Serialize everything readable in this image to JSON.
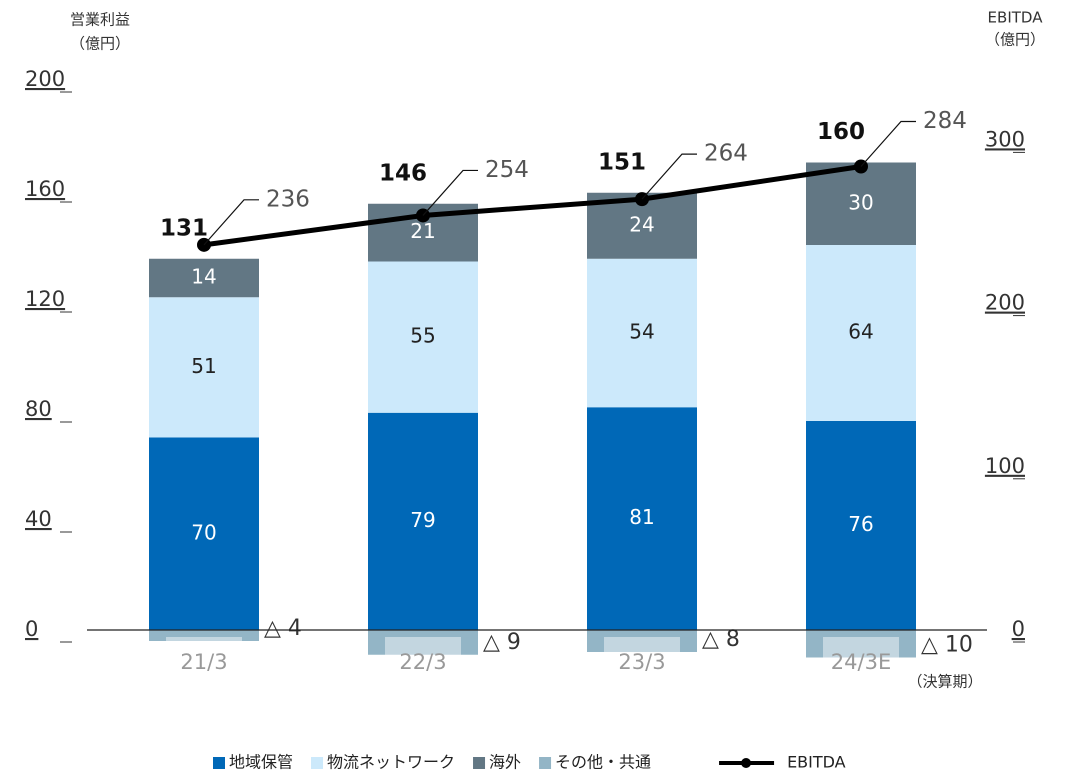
{
  "chart_data": {
    "type": "bar",
    "categories": [
      "21/3",
      "22/3",
      "23/3",
      "24/3E"
    ],
    "y_axis_title": "営業利益",
    "y_axis_unit": "（億円）",
    "y2_axis_title": "EBITDA",
    "y2_axis_unit": "（億円）",
    "x_axis_label": "（決算期）",
    "series": [
      {
        "name": "地域保管",
        "color": "#0068b7",
        "values": [
          70,
          79,
          81,
          76
        ]
      },
      {
        "name": "物流ネットワーク",
        "color": "#cce9fb",
        "values": [
          51,
          55,
          54,
          64
        ]
      },
      {
        "name": "海外",
        "color": "#627784",
        "values": [
          14,
          21,
          24,
          30
        ]
      },
      {
        "name": "その他・共通",
        "color": "#93b5c6",
        "values": [
          -4,
          -9,
          -8,
          -10
        ],
        "value_labels": [
          "△ 4",
          "△ 9",
          "△ 8",
          "△ 10"
        ]
      },
      {
        "name": "EBITDA",
        "type": "line",
        "axis": "y2",
        "color": "#000000",
        "values": [
          236,
          254,
          264,
          284
        ]
      }
    ],
    "totals": [
      131,
      146,
      151,
      160
    ],
    "ylim": [
      -10,
      200
    ],
    "yticks": [
      0,
      40,
      80,
      120,
      160,
      200
    ],
    "y2lim": [
      0,
      337
    ],
    "y2ticks": [
      0,
      100,
      200,
      300
    ],
    "grid": false,
    "legend": "bottom"
  }
}
